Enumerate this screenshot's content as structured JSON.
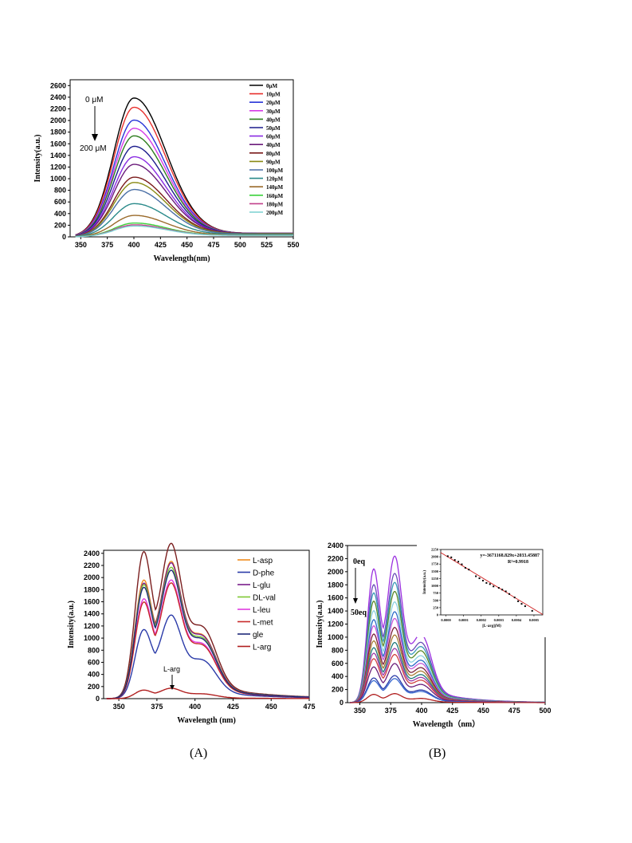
{
  "captions": {
    "a": "(A)",
    "b": "(B)"
  },
  "chart_data": [
    {
      "type": "line",
      "xlabel": "Wavelength(nm)",
      "ylabel": "Intensity(a.u.)",
      "xlim": [
        340,
        550
      ],
      "ylim": [
        0,
        2700
      ],
      "xticks": [
        350,
        375,
        400,
        425,
        450,
        475,
        500,
        525,
        550
      ],
      "yticks": [
        0,
        200,
        400,
        600,
        800,
        1000,
        1200,
        1400,
        1600,
        1800,
        2000,
        2200,
        2400,
        2600
      ],
      "legend_position": "top-right",
      "annotations": [
        "0 μM",
        "200 μM"
      ],
      "peak_nm": 400,
      "series": [
        {
          "name": "0μM",
          "color": "#000000",
          "peak": 2370
        },
        {
          "name": "10μM",
          "color": "#e8312d",
          "peak": 2210
        },
        {
          "name": "20μM",
          "color": "#2936d8",
          "peak": 1990
        },
        {
          "name": "30μM",
          "color": "#d63ce6",
          "peak": 1850
        },
        {
          "name": "40μM",
          "color": "#2e7d1e",
          "peak": 1720
        },
        {
          "name": "50μM",
          "color": "#1c1c8c",
          "peak": 1540
        },
        {
          "name": "60μM",
          "color": "#8a2be2",
          "peak": 1360
        },
        {
          "name": "40μM",
          "color": "#6a1b7a",
          "peak": 1230
        },
        {
          "name": "80μM",
          "color": "#7a1a1a",
          "peak": 1010
        },
        {
          "name": "90μM",
          "color": "#8a8a14",
          "peak": 920
        },
        {
          "name": "100μM",
          "color": "#4a6fa5",
          "peak": 800
        },
        {
          "name": "120μM",
          "color": "#2a8a8a",
          "peak": 560
        },
        {
          "name": "140μM",
          "color": "#9a6a2a",
          "peak": 360
        },
        {
          "name": "160μM",
          "color": "#3bd13b",
          "peak": 230
        },
        {
          "name": "180μM",
          "color": "#c0408a",
          "peak": 200
        },
        {
          "name": "200μM",
          "color": "#7ad0d0",
          "peak": 180
        }
      ]
    },
    {
      "type": "line",
      "xlabel": "Wavelength (nm)",
      "ylabel": "Intensity(a.u.)",
      "xlim": [
        340,
        475
      ],
      "ylim": [
        0,
        2450
      ],
      "xticks": [
        350,
        375,
        400,
        425,
        450,
        475
      ],
      "yticks": [
        0,
        200,
        400,
        600,
        800,
        1000,
        1200,
        1400,
        1600,
        1800,
        2000,
        2200,
        2400
      ],
      "legend_position": "top-right",
      "annotations": [
        "L-arg"
      ],
      "peaks_nm": [
        366,
        384
      ],
      "series": [
        {
          "name": "",
          "color": "#7a1e1e",
          "peak1": 2260,
          "peak2": 2080
        },
        {
          "name": "L-asp",
          "color": "#f08c1e",
          "peak1": 1810,
          "peak2": 1840
        },
        {
          "name": "D-phe",
          "color": "#2a3aa8",
          "peak1": 1050,
          "peak2": 1120
        },
        {
          "name": "L-glu",
          "color": "#7a1e8a",
          "peak1": 1760,
          "peak2": 1820
        },
        {
          "name": "DL-val",
          "color": "#7ec832",
          "peak1": 1740,
          "peak2": 1760
        },
        {
          "name": "L-leu",
          "color": "#e03ce0",
          "peak1": 1520,
          "peak2": 1590
        },
        {
          "name": "L-met",
          "color": "#c82a2a",
          "peak1": 1470,
          "peak2": 1550
        },
        {
          "name": "gle",
          "color": "#1e2a7a",
          "peak1": 1700,
          "peak2": 1720
        },
        {
          "name": "L-arg",
          "color": "#b01e1e",
          "peak1": 130,
          "peak2": 140
        }
      ]
    },
    {
      "type": "line",
      "xlabel": "Wavelength（nm）",
      "ylabel": "Intensity(a.u.)",
      "xlim": [
        340,
        500
      ],
      "ylim": [
        0,
        2400
      ],
      "xticks": [
        350,
        375,
        400,
        425,
        450,
        475,
        500
      ],
      "yticks": [
        0,
        200,
        400,
        600,
        800,
        1000,
        1200,
        1400,
        1600,
        1800,
        2000,
        2200,
        2400
      ],
      "annotations": [
        "0eq",
        "50eq"
      ],
      "peaks_nm": [
        361,
        378
      ],
      "series_peaks": [
        {
          "color": "#9b30e0",
          "peak": 1950
        },
        {
          "color": "#6a4ab8",
          "peak": 1720
        },
        {
          "color": "#3a9ab8",
          "peak": 1600
        },
        {
          "color": "#5a8a2a",
          "peak": 1480
        },
        {
          "color": "#8ad0e0",
          "peak": 1340
        },
        {
          "color": "#2a6ac8",
          "peak": 1210
        },
        {
          "color": "#c858d8",
          "peak": 1120
        },
        {
          "color": "#7a1e3a",
          "peak": 1000
        },
        {
          "color": "#a87a30",
          "peak": 900
        },
        {
          "color": "#1e7a7a",
          "peak": 800
        },
        {
          "color": "#9a3aa8",
          "peak": 720
        },
        {
          "color": "#d04040",
          "peak": 640
        },
        {
          "color": "#6a1e7a",
          "peak": 520
        },
        {
          "color": "#2a3aa8",
          "peak": 360
        },
        {
          "color": "#3a6ad0",
          "peak": 320
        },
        {
          "color": "#b01e1e",
          "peak": 120
        }
      ],
      "inset": {
        "type": "scatter",
        "xlabel": "[L-arg](M)",
        "ylabel": "Intensity(a.u.)",
        "xlim": [
          -3e-05,
          0.00055
        ],
        "ylim": [
          0,
          2250
        ],
        "xticks": [
          0.0,
          0.0001,
          0.0002,
          0.0003,
          0.0004,
          0.0005
        ],
        "xtick_labels": [
          "0.0000",
          "0.0001",
          "0.0002",
          "0.0003",
          "0.0004",
          "0.0005"
        ],
        "yticks": [
          0,
          250,
          500,
          750,
          1000,
          1250,
          1500,
          1750,
          2000,
          2250
        ],
        "equation": "y=-3671168.829x+2033.45887",
        "r2": "R²=0.9918",
        "x": [
          1e-05,
          3e-05,
          5e-05,
          7e-05,
          9e-05,
          0.00011,
          0.00013,
          0.00017,
          0.00019,
          0.00021,
          0.00023,
          0.00025,
          0.00027,
          0.0003,
          0.00032,
          0.00034,
          0.00036,
          0.00039,
          0.00041,
          0.00043,
          0.00045,
          0.00049
        ],
        "y": [
          2020,
          1980,
          1890,
          1830,
          1740,
          1620,
          1560,
          1330,
          1260,
          1180,
          1100,
          1060,
          980,
          930,
          870,
          810,
          720,
          600,
          470,
          380,
          300,
          140
        ]
      }
    }
  ]
}
